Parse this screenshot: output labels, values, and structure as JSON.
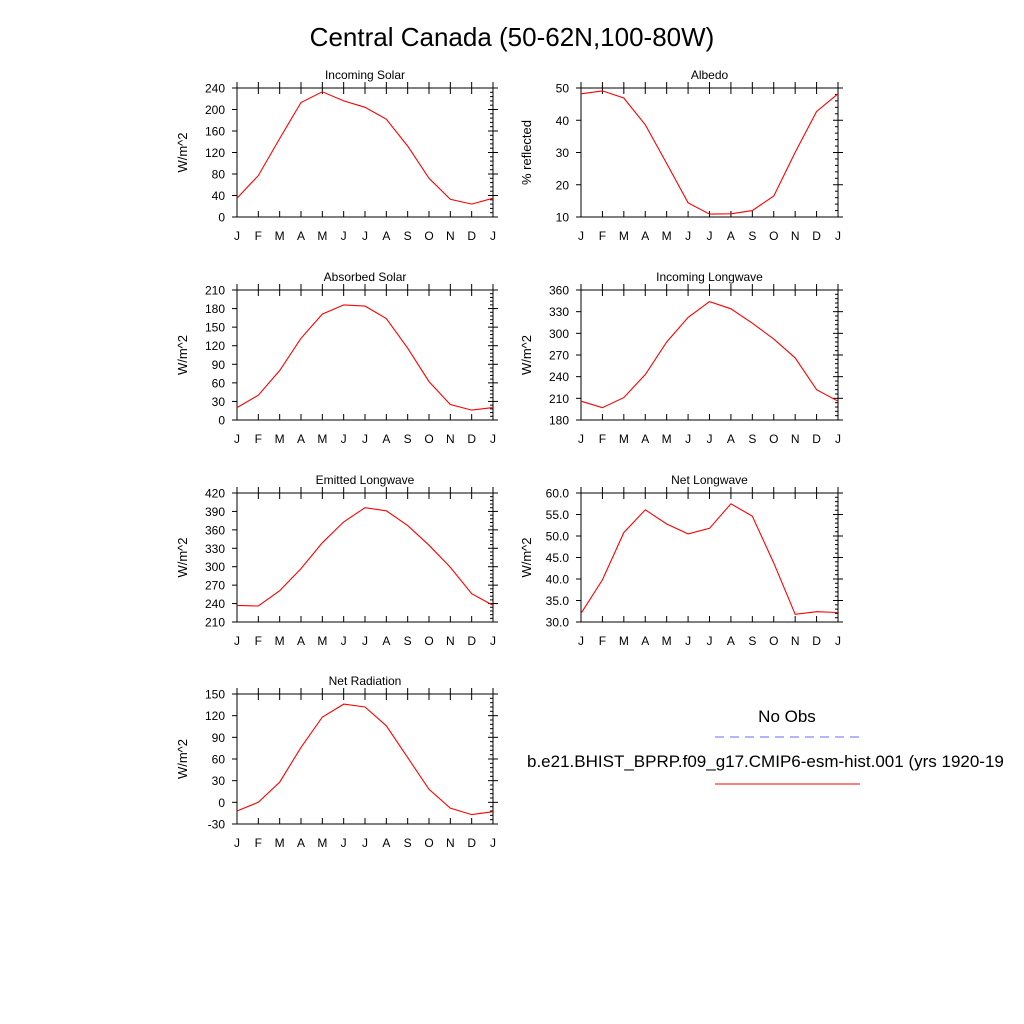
{
  "page": {
    "title": "Central Canada (50-62N,100-80W)"
  },
  "legend": {
    "obs_label": "No Obs",
    "obs_color": "#6a6aff",
    "obs_style": "dashed",
    "model_label": "b.e21.BHIST_BPRP.f09_g17.CMIP6-esm-hist.001 (yrs 1920-19",
    "model_color": "#ff0000",
    "model_style": "solid"
  },
  "chart_data": [
    {
      "type": "line",
      "title": "Incoming Solar",
      "ylabel": "W/m^2",
      "categories": [
        "J",
        "F",
        "M",
        "A",
        "M",
        "J",
        "J",
        "A",
        "S",
        "O",
        "N",
        "D",
        "J"
      ],
      "ylim": [
        0,
        240
      ],
      "yticks": [
        "0",
        "40",
        "80",
        "120",
        "160",
        "200",
        "240"
      ],
      "series": [
        {
          "color": "#ff0000",
          "values": [
            35,
            77,
            146,
            213,
            233,
            216,
            204,
            182,
            132,
            72,
            33,
            24,
            35
          ]
        }
      ]
    },
    {
      "type": "line",
      "title": "Albedo",
      "ylabel": "% reflected",
      "categories": [
        "J",
        "F",
        "M",
        "A",
        "M",
        "J",
        "J",
        "A",
        "S",
        "O",
        "N",
        "D",
        "J"
      ],
      "ylim": [
        10,
        50
      ],
      "yticks": [
        "10",
        "20",
        "30",
        "40",
        "50"
      ],
      "series": [
        {
          "color": "#ff0000",
          "values": [
            48.2,
            49.1,
            46.9,
            38.6,
            26.6,
            14.4,
            10.9,
            11.0,
            12.0,
            16.5,
            30.1,
            42.7,
            48.2
          ]
        }
      ]
    },
    {
      "type": "line",
      "title": "Absorbed Solar",
      "ylabel": "W/m^2",
      "categories": [
        "J",
        "F",
        "M",
        "A",
        "M",
        "J",
        "J",
        "A",
        "S",
        "O",
        "N",
        "D",
        "J"
      ],
      "ylim": [
        0,
        210
      ],
      "yticks": [
        "0",
        "30",
        "60",
        "90",
        "120",
        "150",
        "180",
        "210"
      ],
      "series": [
        {
          "color": "#ff0000",
          "values": [
            20,
            40,
            80,
            132,
            171,
            186,
            184,
            164,
            116,
            62,
            25,
            16,
            20
          ]
        }
      ]
    },
    {
      "type": "line",
      "title": "Incoming Longwave",
      "ylabel": "W/m^2",
      "categories": [
        "J",
        "F",
        "M",
        "A",
        "M",
        "J",
        "J",
        "A",
        "S",
        "O",
        "N",
        "D",
        "J"
      ],
      "ylim": [
        180,
        360
      ],
      "yticks": [
        "180",
        "210",
        "240",
        "270",
        "300",
        "330",
        "360"
      ],
      "series": [
        {
          "color": "#ff0000",
          "values": [
            206,
            197,
            211,
            243,
            288,
            322,
            344,
            334,
            314,
            292,
            266,
            222,
            206
          ]
        }
      ]
    },
    {
      "type": "line",
      "title": "Emitted Longwave",
      "ylabel": "W/m^2",
      "categories": [
        "J",
        "F",
        "M",
        "A",
        "M",
        "J",
        "J",
        "A",
        "S",
        "O",
        "N",
        "D",
        "J"
      ],
      "ylim": [
        210,
        420
      ],
      "yticks": [
        "210",
        "240",
        "270",
        "300",
        "330",
        "360",
        "390",
        "420"
      ],
      "series": [
        {
          "color": "#ff0000",
          "values": [
            237,
            236,
            261,
            297,
            339,
            373,
            396,
            391,
            367,
            335,
            299,
            256,
            237
          ]
        }
      ]
    },
    {
      "type": "line",
      "title": "Net Longwave",
      "ylabel": "W/m^2",
      "categories": [
        "J",
        "F",
        "M",
        "A",
        "M",
        "J",
        "J",
        "A",
        "S",
        "O",
        "N",
        "D",
        "J"
      ],
      "ylim": [
        30,
        60
      ],
      "yticks": [
        "30.0",
        "35.0",
        "40.0",
        "45.0",
        "50.0",
        "55.0",
        "60.0"
      ],
      "series": [
        {
          "color": "#ff0000",
          "values": [
            32.0,
            39.8,
            50.8,
            56.1,
            52.8,
            50.5,
            51.8,
            57.5,
            54.6,
            43.7,
            31.8,
            32.4,
            32.2
          ]
        }
      ]
    },
    {
      "type": "line",
      "title": "Net Radiation",
      "ylabel": "W/m^2",
      "categories": [
        "J",
        "F",
        "M",
        "A",
        "M",
        "J",
        "J",
        "A",
        "S",
        "O",
        "N",
        "D",
        "J"
      ],
      "ylim": [
        -30,
        150
      ],
      "yticks": [
        "-30",
        "0",
        "30",
        "60",
        "90",
        "120",
        "150"
      ],
      "series": [
        {
          "color": "#ff0000",
          "values": [
            -12,
            0,
            28,
            76,
            118,
            136,
            132,
            106,
            62,
            18,
            -8,
            -17,
            -13
          ]
        }
      ]
    }
  ]
}
